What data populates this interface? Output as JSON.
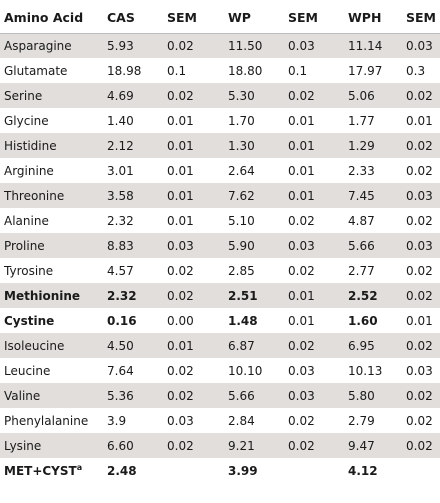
{
  "table": {
    "headers": [
      "Amino Acid",
      "CAS",
      "SEM",
      "WP",
      "SEM",
      "WPH",
      "SEM"
    ],
    "rows": [
      {
        "name": "Asparagine",
        "cells": [
          "5.93",
          "0.02",
          "11.50",
          "0.03",
          "11.14",
          "0.03"
        ],
        "shaded": true,
        "bold": false
      },
      {
        "name": "Glutamate",
        "cells": [
          "18.98",
          "0.1",
          "18.80",
          "0.1",
          "17.97",
          "0.3"
        ],
        "shaded": false,
        "bold": false
      },
      {
        "name": "Serine",
        "cells": [
          "4.69",
          "0.02",
          "5.30",
          "0.02",
          "5.06",
          "0.02"
        ],
        "shaded": true,
        "bold": false
      },
      {
        "name": "Glycine",
        "cells": [
          "1.40",
          "0.01",
          "1.70",
          "0.01",
          "1.77",
          "0.01"
        ],
        "shaded": false,
        "bold": false
      },
      {
        "name": "Histidine",
        "cells": [
          "2.12",
          "0.01",
          "1.30",
          "0.01",
          "1.29",
          "0.02"
        ],
        "shaded": true,
        "bold": false
      },
      {
        "name": "Arginine",
        "cells": [
          "3.01",
          "0.01",
          "2.64",
          "0.01",
          "2.33",
          "0.02"
        ],
        "shaded": false,
        "bold": false
      },
      {
        "name": "Threonine",
        "cells": [
          "3.58",
          "0.01",
          "7.62",
          "0.01",
          "7.45",
          "0.03"
        ],
        "shaded": true,
        "bold": false
      },
      {
        "name": "Alanine",
        "cells": [
          "2.32",
          "0.01",
          "5.10",
          "0.02",
          "4.87",
          "0.02"
        ],
        "shaded": false,
        "bold": false
      },
      {
        "name": "Proline",
        "cells": [
          "8.83",
          "0.03",
          "5.90",
          "0.03",
          "5.66",
          "0.03"
        ],
        "shaded": true,
        "bold": false
      },
      {
        "name": "Tyrosine",
        "cells": [
          "4.57",
          "0.02",
          "2.85",
          "0.02",
          "2.77",
          "0.02"
        ],
        "shaded": false,
        "bold": false
      },
      {
        "name": "Methionine",
        "cells": [
          "2.32",
          "0.02",
          "2.51",
          "0.01",
          "2.52",
          "0.02"
        ],
        "shaded": true,
        "bold": true
      },
      {
        "name": "Cystine",
        "cells": [
          "0.16",
          "0.00",
          "1.48",
          "0.01",
          "1.60",
          "0.01"
        ],
        "shaded": false,
        "bold": true
      },
      {
        "name": "Isoleucine",
        "cells": [
          "4.50",
          "0.01",
          "6.87",
          "0.02",
          "6.95",
          "0.02"
        ],
        "shaded": true,
        "bold": false
      },
      {
        "name": "Leucine",
        "cells": [
          "7.64",
          "0.02",
          "10.10",
          "0.03",
          "10.13",
          "0.03"
        ],
        "shaded": false,
        "bold": false
      },
      {
        "name": "Valine",
        "cells": [
          "5.36",
          "0.02",
          "5.66",
          "0.03",
          "5.80",
          "0.02"
        ],
        "shaded": true,
        "bold": false
      },
      {
        "name": "Phenylalanine",
        "cells": [
          "3.9",
          "0.03",
          "2.84",
          "0.02",
          "2.79",
          "0.02"
        ],
        "shaded": false,
        "bold": false
      },
      {
        "name": "Lysine",
        "cells": [
          "6.60",
          "0.02",
          "9.21",
          "0.02",
          "9.47",
          "0.02"
        ],
        "shaded": true,
        "bold": false
      },
      {
        "name": "MET+CYST",
        "sup": "a",
        "cells": [
          "2.48",
          "",
          "3.99",
          "",
          "4.12",
          ""
        ],
        "shaded": false,
        "bold": true
      }
    ]
  }
}
